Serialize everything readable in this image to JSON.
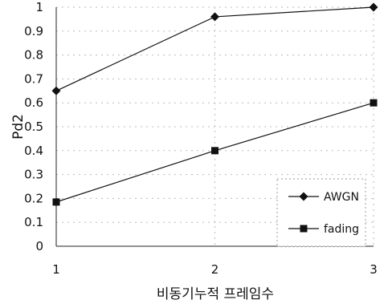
{
  "chart_data": {
    "type": "line",
    "xlabel": "비동기누적 프레임수",
    "ylabel": "Pd2",
    "x": [
      1,
      2,
      3
    ],
    "xlim": [
      1,
      3
    ],
    "ylim": [
      0,
      1
    ],
    "y_ticks": [
      "0",
      "0.1",
      "0.2",
      "0.3",
      "0.4",
      "0.5",
      "0.6",
      "0.7",
      "0.8",
      "0.9",
      "1"
    ],
    "x_ticks": [
      "1",
      "2",
      "3"
    ],
    "grid": true,
    "legend_position": "bottom-right",
    "series": [
      {
        "name": "AWGN",
        "marker": "diamond",
        "values": [
          0.65,
          0.96,
          1.0
        ]
      },
      {
        "name": "fading",
        "marker": "square",
        "values": [
          0.185,
          0.4,
          0.6
        ]
      }
    ]
  }
}
